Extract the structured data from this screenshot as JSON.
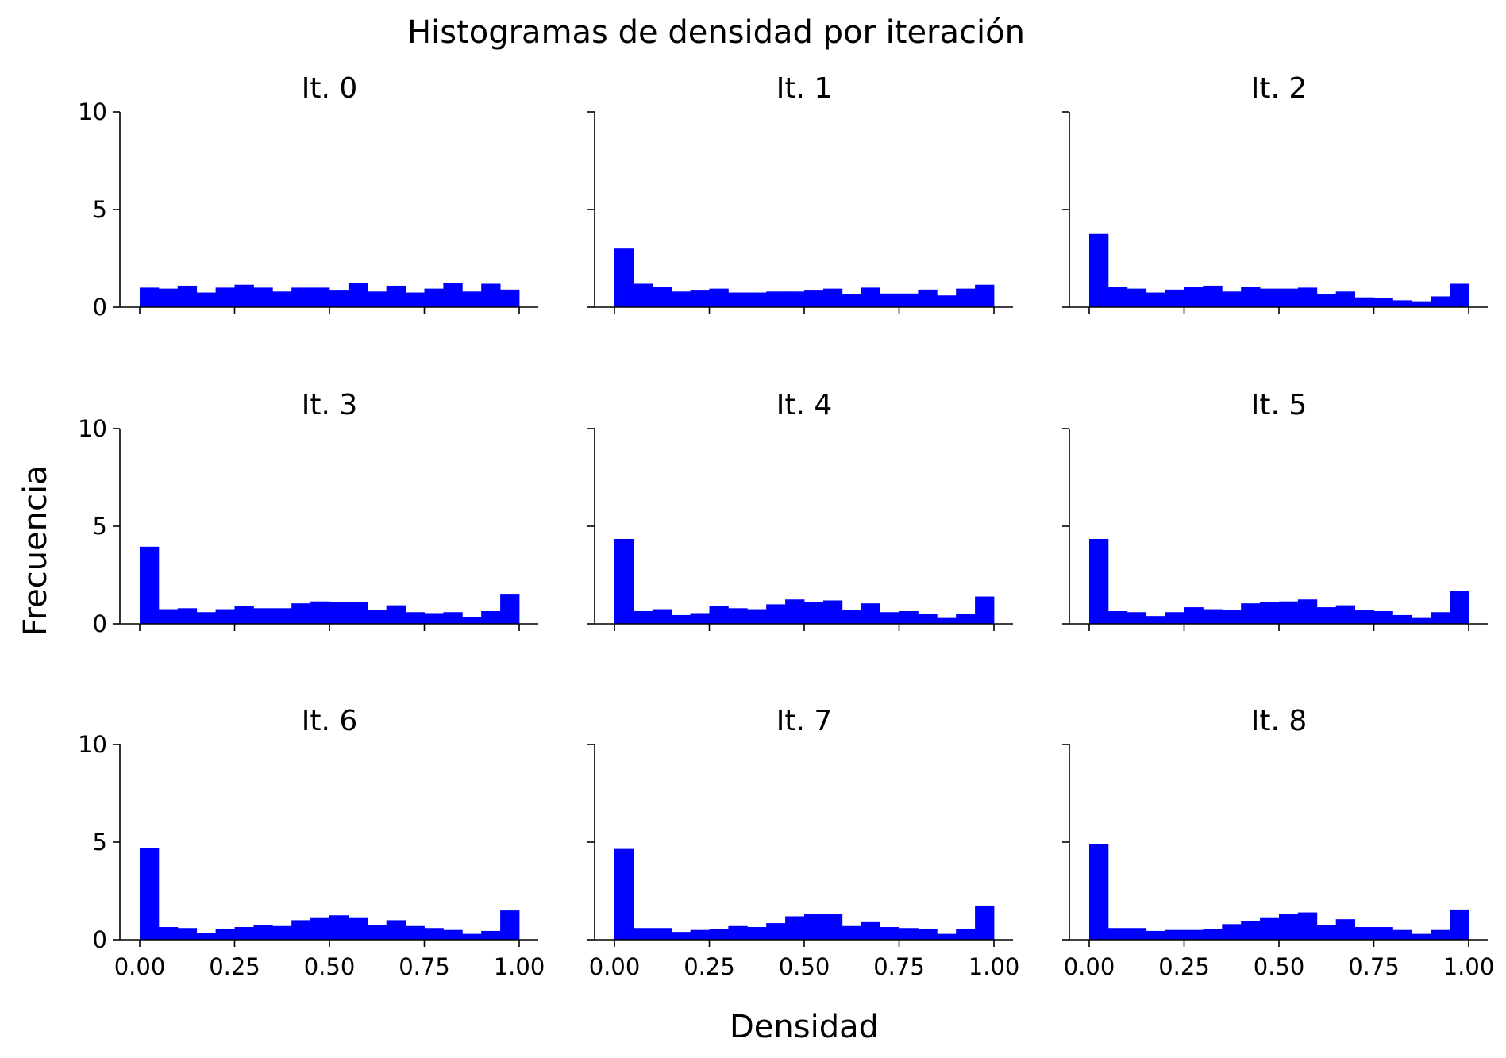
{
  "figure": {
    "title": "Histogramas de densidad por iteración",
    "xlabel": "Densidad",
    "ylabel": "Frecuencia",
    "bar_color": "#0000ff"
  },
  "chart_data": {
    "type": "bar",
    "layout": "3x3 grid, shared axes",
    "xlim": [
      0,
      1
    ],
    "ylim": [
      0,
      10
    ],
    "xticks": [
      0,
      0.25,
      0.5,
      0.75,
      1
    ],
    "xtick_labels": [
      "0.00",
      "0.25",
      "0.50",
      "0.75",
      "1.00"
    ],
    "yticks": [
      0,
      5,
      10
    ],
    "ytick_labels": [
      "0",
      "5",
      "10"
    ],
    "bins": [
      0,
      0.05,
      0.1,
      0.15,
      0.2,
      0.25,
      0.3,
      0.35,
      0.4,
      0.45,
      0.5,
      0.55,
      0.6,
      0.65,
      0.7,
      0.75,
      0.8,
      0.85,
      0.9,
      0.95,
      1
    ],
    "grid": false,
    "panels": [
      {
        "title": "It. 0",
        "values": [
          1.0,
          0.95,
          1.1,
          0.75,
          1.0,
          1.15,
          1.0,
          0.8,
          1.0,
          1.0,
          0.85,
          1.25,
          0.8,
          1.1,
          0.75,
          0.95,
          1.25,
          0.8,
          1.2,
          0.9
        ]
      },
      {
        "title": "It. 1",
        "values": [
          3.0,
          1.2,
          1.05,
          0.8,
          0.85,
          0.95,
          0.75,
          0.75,
          0.8,
          0.8,
          0.85,
          0.95,
          0.65,
          1.0,
          0.7,
          0.7,
          0.9,
          0.6,
          0.95,
          1.15
        ]
      },
      {
        "title": "It. 2",
        "values": [
          3.75,
          1.05,
          0.95,
          0.75,
          0.9,
          1.05,
          1.1,
          0.8,
          1.05,
          0.95,
          0.95,
          1.0,
          0.65,
          0.8,
          0.5,
          0.45,
          0.35,
          0.3,
          0.55,
          1.2
        ]
      },
      {
        "title": "It. 3",
        "values": [
          3.95,
          0.75,
          0.8,
          0.6,
          0.75,
          0.9,
          0.8,
          0.8,
          1.05,
          1.15,
          1.1,
          1.1,
          0.7,
          0.95,
          0.6,
          0.55,
          0.6,
          0.35,
          0.65,
          1.5
        ]
      },
      {
        "title": "It. 4",
        "values": [
          4.35,
          0.65,
          0.75,
          0.45,
          0.55,
          0.9,
          0.8,
          0.75,
          1.0,
          1.25,
          1.1,
          1.2,
          0.7,
          1.05,
          0.6,
          0.65,
          0.5,
          0.3,
          0.5,
          1.4
        ]
      },
      {
        "title": "It. 5",
        "values": [
          4.35,
          0.65,
          0.6,
          0.4,
          0.6,
          0.85,
          0.75,
          0.7,
          1.05,
          1.1,
          1.15,
          1.25,
          0.85,
          0.95,
          0.7,
          0.65,
          0.45,
          0.3,
          0.6,
          1.7
        ]
      },
      {
        "title": "It. 6",
        "values": [
          4.7,
          0.65,
          0.6,
          0.35,
          0.55,
          0.65,
          0.75,
          0.7,
          1.0,
          1.15,
          1.25,
          1.15,
          0.75,
          1.0,
          0.7,
          0.6,
          0.5,
          0.3,
          0.45,
          1.5
        ]
      },
      {
        "title": "It. 7",
        "values": [
          4.65,
          0.6,
          0.6,
          0.4,
          0.5,
          0.55,
          0.7,
          0.65,
          0.85,
          1.2,
          1.3,
          1.3,
          0.7,
          0.9,
          0.65,
          0.6,
          0.55,
          0.3,
          0.55,
          1.75
        ]
      },
      {
        "title": "It. 8",
        "values": [
          4.9,
          0.6,
          0.6,
          0.45,
          0.5,
          0.5,
          0.55,
          0.8,
          0.95,
          1.15,
          1.3,
          1.4,
          0.75,
          1.05,
          0.65,
          0.65,
          0.5,
          0.3,
          0.5,
          1.55
        ]
      }
    ]
  }
}
